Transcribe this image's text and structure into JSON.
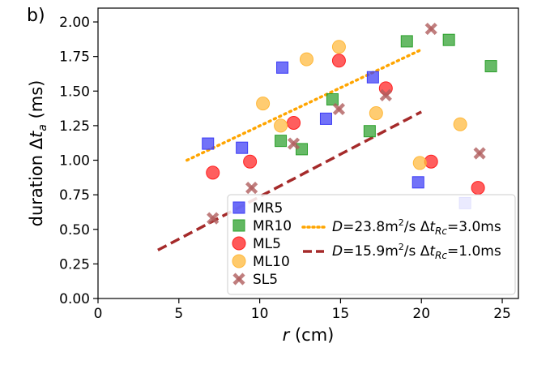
{
  "chart_data": {
    "type": "scatter",
    "panel_label": "b)",
    "xlabel_var": "r",
    "xlabel_unit": " (cm)",
    "ylabel_prefix": "duration Δ",
    "ylabel_var": "t",
    "ylabel_sub": "a",
    "ylabel_unit": " (ms)",
    "xlim": [
      0,
      26
    ],
    "ylim": [
      0,
      2.1
    ],
    "x_ticks": [
      0,
      5,
      10,
      15,
      20,
      25
    ],
    "y_ticks": [
      0.0,
      0.25,
      0.5,
      0.75,
      1.0,
      1.25,
      1.5,
      1.75,
      2.0
    ],
    "x_tick_labels": [
      "0",
      "5",
      "10",
      "15",
      "20",
      "25"
    ],
    "y_tick_labels": [
      "0.00",
      "0.25",
      "0.50",
      "0.75",
      "1.00",
      "1.25",
      "1.50",
      "1.75",
      "2.00"
    ],
    "grid": false,
    "series": [
      {
        "name": "MR5",
        "marker": "square",
        "color": "#3b3bf5",
        "points": [
          [
            6.8,
            1.12
          ],
          [
            8.9,
            1.09
          ],
          [
            11.4,
            1.67
          ],
          [
            14.1,
            1.3
          ],
          [
            17,
            1.6
          ],
          [
            19.8,
            0.84
          ],
          [
            22.7,
            0.69
          ]
        ]
      },
      {
        "name": "MR10",
        "marker": "square",
        "color": "#2ca02c",
        "points": [
          [
            11.3,
            1.14
          ],
          [
            12.6,
            1.08
          ],
          [
            14.5,
            1.44
          ],
          [
            16.8,
            1.21
          ],
          [
            19.1,
            1.86
          ],
          [
            21.7,
            1.87
          ],
          [
            24.3,
            1.68
          ]
        ]
      },
      {
        "name": "ML5",
        "marker": "circle",
        "color": "#ff2020",
        "points": [
          [
            7.1,
            0.91
          ],
          [
            9.4,
            0.99
          ],
          [
            12.1,
            1.27
          ],
          [
            14.9,
            1.72
          ],
          [
            17.8,
            1.52
          ],
          [
            20.6,
            0.99
          ],
          [
            23.5,
            0.8
          ]
        ]
      },
      {
        "name": "ML10",
        "marker": "circle",
        "color": "#ffb83a",
        "points": [
          [
            10.2,
            1.41
          ],
          [
            11.3,
            1.25
          ],
          [
            12.9,
            1.73
          ],
          [
            14.9,
            1.82
          ],
          [
            17.2,
            1.34
          ],
          [
            19.9,
            0.98
          ],
          [
            22.4,
            1.26
          ]
        ]
      },
      {
        "name": "SL5",
        "marker": "x",
        "color": "#b05e5e",
        "points": [
          [
            7.1,
            0.58
          ],
          [
            9.5,
            0.8
          ],
          [
            12.1,
            1.12
          ],
          [
            14.9,
            1.37
          ],
          [
            17.8,
            1.47
          ],
          [
            20.6,
            1.95
          ],
          [
            23.6,
            1.05
          ]
        ]
      }
    ],
    "fits": [
      {
        "name": "D=23.8m²/s Δt_Rc=3.0ms",
        "D_label": "D",
        "D_value": "=23.8m",
        "D_exp": "2",
        "D_rest": "/s Δ",
        "t_var": "t",
        "t_sub": "Rc",
        "t_value": "=3.0ms",
        "style": "dotted",
        "color": "#ffa500",
        "D": 23.8,
        "t0": 3.0,
        "x_range": [
          5.5,
          20
        ]
      },
      {
        "name": "D=15.9m²/s Δt_Rc=1.0ms",
        "D_label": "D",
        "D_value": "=15.9m",
        "D_exp": "2",
        "D_rest": "/s Δ",
        "t_var": "t",
        "t_sub": "Rc",
        "t_value": "=1.0ms",
        "style": "dashed",
        "color": "#a52a2a",
        "D": 15.9,
        "t0": 1.0,
        "x_range": [
          3.7,
          20
        ]
      }
    ],
    "legend_location": "lower-right"
  }
}
